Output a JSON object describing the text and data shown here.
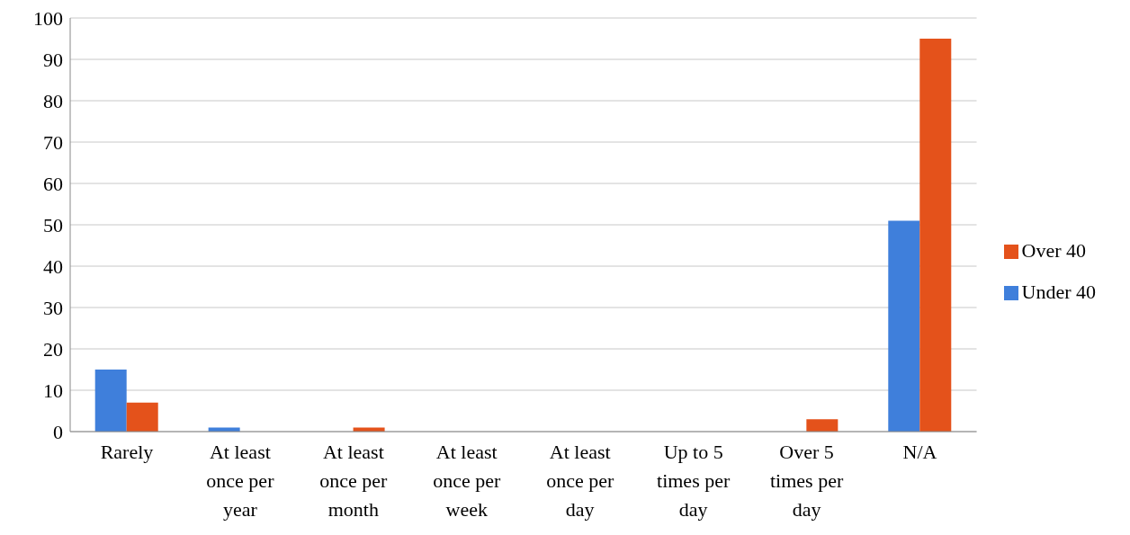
{
  "chart_data": {
    "type": "bar",
    "categories": [
      "Rarely",
      "At least once per year",
      "At least once per month",
      "At least once per week",
      "At least once per day",
      "Up to 5 times per day",
      "Over 5 times per day",
      "N/A"
    ],
    "series": [
      {
        "name": "Under 40",
        "color": "#3f7fdb",
        "values": [
          15,
          1,
          0,
          0,
          0,
          0,
          0,
          51
        ]
      },
      {
        "name": "Over 40",
        "color": "#e4521b",
        "values": [
          7,
          0,
          1,
          0,
          0,
          0,
          3,
          95
        ]
      }
    ],
    "ylim": [
      0,
      100
    ],
    "yticks": [
      0,
      10,
      20,
      30,
      40,
      50,
      60,
      70,
      80,
      90,
      100
    ],
    "grid": "y",
    "legend": "right"
  }
}
